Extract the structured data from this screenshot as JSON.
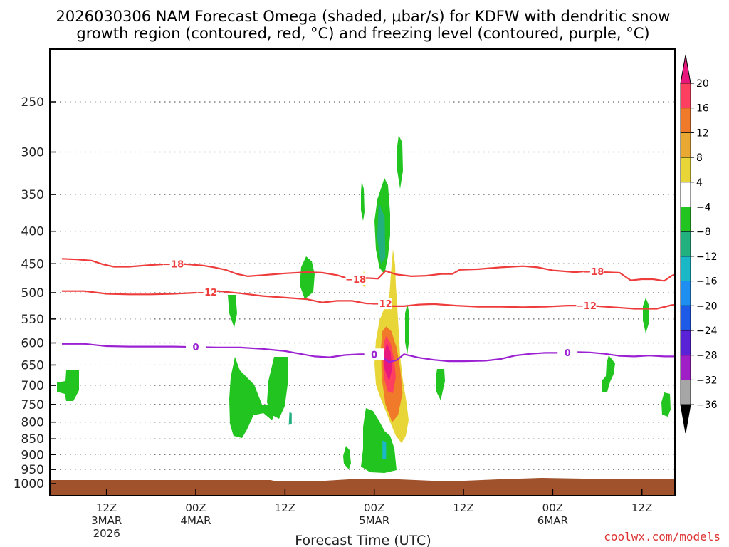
{
  "title_line1": "2026030306 NAM Forecast Omega (shaded, μbar/s) for KDFW with dendritic snow",
  "title_line2": "growth region (contoured, red, °C) and freezing level (contoured, purple, °C)",
  "xlabel": "Forecast Time (UTC)",
  "credit": "coolwx.com/models",
  "chart_data": {
    "type": "contour-timeseries",
    "x_unit": "hours since 2026-03-03 06Z",
    "x_range": [
      0,
      84
    ],
    "y_unit": "hPa",
    "y_range": [
      1000,
      200
    ],
    "y_ticks": [
      250,
      300,
      350,
      400,
      450,
      500,
      550,
      600,
      650,
      700,
      750,
      800,
      850,
      900,
      950,
      1000
    ],
    "x_ticks": [
      {
        "x": 6,
        "line1": "12Z",
        "line2": "3MAR",
        "line3": "2026"
      },
      {
        "x": 18,
        "line1": "00Z",
        "line2": "4MAR",
        "line3": ""
      },
      {
        "x": 30,
        "line1": "12Z",
        "line2": "",
        "line3": ""
      },
      {
        "x": 42,
        "line1": "00Z",
        "line2": "5MAR",
        "line3": ""
      },
      {
        "x": 54,
        "line1": "12Z",
        "line2": "",
        "line3": ""
      },
      {
        "x": 66,
        "line1": "00Z",
        "line2": "6MAR",
        "line3": ""
      },
      {
        "x": 78,
        "line1": "12Z",
        "line2": "",
        "line3": ""
      }
    ],
    "colorbar": {
      "levels": [
        "20",
        "16",
        "12",
        "8",
        "4",
        "−4",
        "−8",
        "−12",
        "−16",
        "−20",
        "−24",
        "−28",
        "−32",
        "−36"
      ],
      "colors": [
        "#ff3f5f",
        "#f07a2a",
        "#e8a832",
        "#e8d638",
        "#ffffff",
        "#22c41f",
        "#21b07e",
        "#1ab7c6",
        "#1e8ff0",
        "#1e5ae8",
        "#5a22d6",
        "#a01ec6",
        "#a6a6a6"
      ],
      "top_arrow_color": "#e8177e",
      "bottom_arrow_color": "#000000"
    },
    "series": [
      {
        "name": "dgz_minus18",
        "label": "−18",
        "color": "#ee3c3c",
        "x": [
          0,
          2,
          4,
          5.5,
          7,
          9,
          12,
          15,
          17,
          19,
          20.5,
          22,
          23.5,
          25,
          27,
          30,
          33,
          35,
          37,
          39,
          41,
          42.5,
          43.5,
          45,
          47,
          49,
          51,
          52.5,
          53.5,
          56,
          59,
          62,
          64,
          66,
          69,
          71,
          73,
          75,
          76.5,
          78,
          79.5,
          81,
          82,
          83,
          84
        ],
        "y": [
          442,
          443,
          445,
          451,
          455,
          455,
          452,
          450,
          451,
          453,
          456,
          460,
          467,
          471,
          469,
          466,
          464,
          465,
          469,
          477,
          474,
          475,
          462,
          468,
          471,
          470,
          467,
          467,
          460,
          459,
          456,
          454,
          456,
          461,
          464,
          462,
          464,
          465,
          478,
          476,
          476,
          479,
          470,
          466,
          462
        ],
        "labels_at": [
          15,
          39.5,
          71.5
        ]
      },
      {
        "name": "dgz_minus12",
        "label": "−12",
        "color": "#ee3c3c",
        "x": [
          0,
          3,
          6,
          9,
          12,
          15,
          18,
          21,
          24,
          27,
          30,
          33,
          35,
          37,
          39,
          41,
          43,
          44.5,
          46,
          48,
          50,
          53,
          56,
          59,
          62,
          65,
          68,
          71,
          74,
          77,
          80,
          82,
          84
        ],
        "y": [
          497,
          497,
          502,
          503,
          503,
          502,
          500,
          497,
          501,
          506,
          509,
          512,
          518,
          515,
          515,
          520,
          520,
          525,
          525,
          522,
          521,
          524,
          526,
          526,
          527,
          526,
          524,
          524,
          527,
          530,
          530,
          523,
          521
        ],
        "labels_at": [
          19.5,
          43,
          70.5
        ]
      },
      {
        "name": "freezing_level_0",
        "label": "0",
        "color": "#9b21d2",
        "x": [
          0,
          3,
          6,
          9,
          12,
          15,
          18,
          21,
          24,
          27,
          30,
          32,
          34,
          36,
          38,
          40,
          42,
          43,
          44,
          45,
          46,
          48,
          50,
          52,
          54,
          57,
          59,
          61,
          63,
          65,
          67,
          69,
          71,
          73,
          75,
          77,
          79,
          81,
          82,
          83,
          84
        ],
        "y": [
          602,
          602,
          607,
          608,
          608,
          608,
          609,
          610,
          610,
          613,
          618,
          624,
          630,
          632,
          627,
          625,
          625,
          632,
          643,
          639,
          625,
          633,
          638,
          641,
          641,
          640,
          636,
          628,
          624,
          622,
          622,
          620,
          621,
          624,
          629,
          630,
          628,
          630,
          630,
          630,
          629
        ],
        "labels_at": [
          18,
          42,
          68
        ]
      }
    ],
    "omega_regions": [
      {
        "name": "orange-core",
        "color": "#f07a2a",
        "x": [
          43.6,
          44.3,
          45.0,
          45.5,
          45.8,
          45.2,
          44.4,
          43.5,
          43.0,
          42.9,
          43.1
        ],
        "y": [
          565,
          575,
          610,
          660,
          720,
          780,
          800,
          750,
          680,
          610,
          575
        ]
      },
      {
        "name": "red-core",
        "color": "#ff3f5f",
        "x": [
          43.6,
          44.2,
          44.7,
          44.9,
          44.5,
          43.8,
          43.3,
          43.2,
          43.3
        ],
        "y": [
          585,
          600,
          640,
          680,
          720,
          715,
          680,
          640,
          600
        ]
      },
      {
        "name": "magenta-core",
        "color": "#e8177e",
        "x": [
          43.7,
          44.2,
          44.4,
          44.0,
          43.4,
          43.3
        ],
        "y": [
          600,
          620,
          660,
          690,
          660,
          625
        ]
      },
      {
        "name": "cyan-core-upper",
        "color": "#21b07e",
        "x": [
          42.6,
          43.4,
          43.5,
          42.9,
          42.4
        ],
        "y": [
          360,
          380,
          440,
          450,
          410
        ]
      },
      {
        "name": "cyan-core-lower",
        "color": "#21b07e",
        "x": [
          30.6,
          30.9,
          30.9,
          30.5
        ],
        "y": [
          770,
          775,
          805,
          808
        ]
      },
      {
        "name": "cyan-core-bottom",
        "color": "#1ab7c6",
        "x": [
          43.1,
          43.6,
          43.6,
          43.1
        ],
        "y": [
          855,
          860,
          915,
          915
        ]
      }
    ]
  }
}
